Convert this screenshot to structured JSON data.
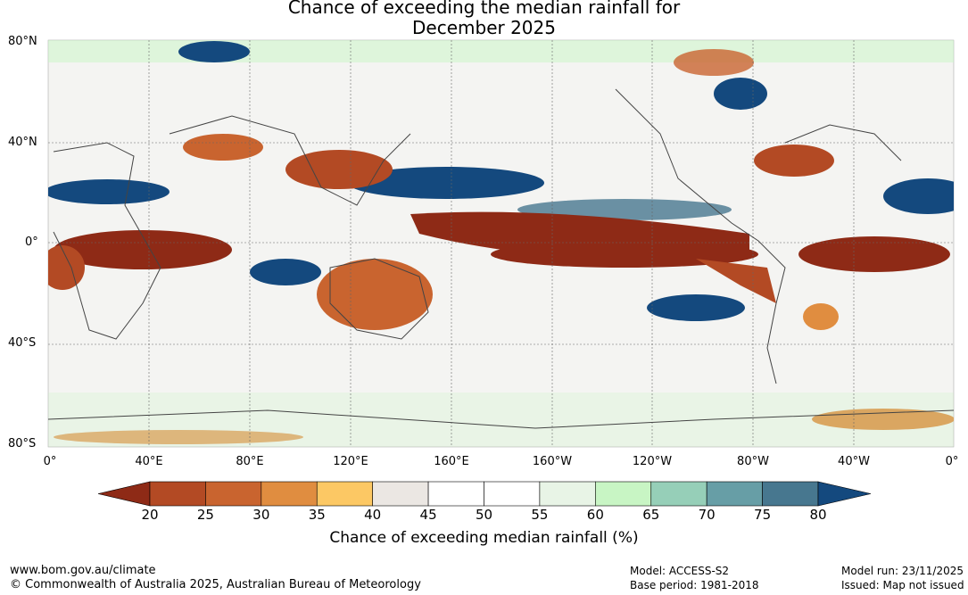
{
  "title": {
    "line1": "Chance of exceeding the median rainfall for",
    "line2": "December 2025"
  },
  "lat_labels": [
    "80°N",
    "40°N",
    "0°",
    "40°S",
    "80°S"
  ],
  "lon_labels": [
    "0°",
    "40°E",
    "80°E",
    "120°E",
    "160°E",
    "160°W",
    "120°W",
    "80°W",
    "40°W",
    "0°"
  ],
  "colorbar": {
    "ticks": [
      "20",
      "25",
      "30",
      "35",
      "40",
      "45",
      "50",
      "55",
      "60",
      "65",
      "70",
      "75",
      "80"
    ],
    "colors": [
      "#8e2a16",
      "#b34a24",
      "#c9642f",
      "#e08d40",
      "#fcc864",
      "#ebe7e3",
      "#ffffff",
      "#ffffff",
      "#e8f4e6",
      "#c8f5c4",
      "#96cfb8",
      "#679ea6",
      "#47778f",
      "#14497e"
    ],
    "title": "Chance of exceeding median rainfall (%)"
  },
  "footer": {
    "url": "www.bom.gov.au/climate",
    "copyright": "© Commonwealth of Australia 2025, Australian Bureau of Meteorology",
    "model": "Model: ACCESS-S2",
    "base_period": "Base period: 1981-2018",
    "model_run": "Model run: 23/11/2025",
    "issued": "Issued: Map not issued"
  }
}
